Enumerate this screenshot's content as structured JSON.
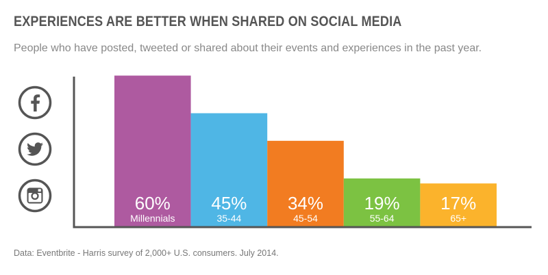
{
  "header": {
    "title": "EXPERIENCES ARE BETTER WHEN SHARED ON SOCIAL MEDIA",
    "subtitle": "People who have posted, tweeted or shared about their events and experiences in the past year."
  },
  "footnote": "Data: Eventbrite - Harris survey of 2,000+ U.S. consumers. July 2014.",
  "icons": [
    "facebook-icon",
    "twitter-icon",
    "instagram-icon"
  ],
  "colors": {
    "icon": "#555555",
    "axis": "#555555"
  },
  "chart_data": {
    "type": "bar",
    "title": "EXPERIENCES ARE BETTER WHEN SHARED ON SOCIAL MEDIA",
    "categories": [
      "Millennials",
      "35-44",
      "45-54",
      "55-64",
      "65+"
    ],
    "values": [
      60,
      45,
      34,
      19,
      17
    ],
    "value_labels": [
      "60%",
      "45%",
      "34%",
      "19%",
      "17%"
    ],
    "bar_colors": [
      "#AE5AA0",
      "#4FB6E5",
      "#F27C21",
      "#7CC242",
      "#FBB32C"
    ],
    "unit": "%",
    "ylim": [
      0,
      60
    ],
    "grid": false,
    "legend": "none"
  }
}
